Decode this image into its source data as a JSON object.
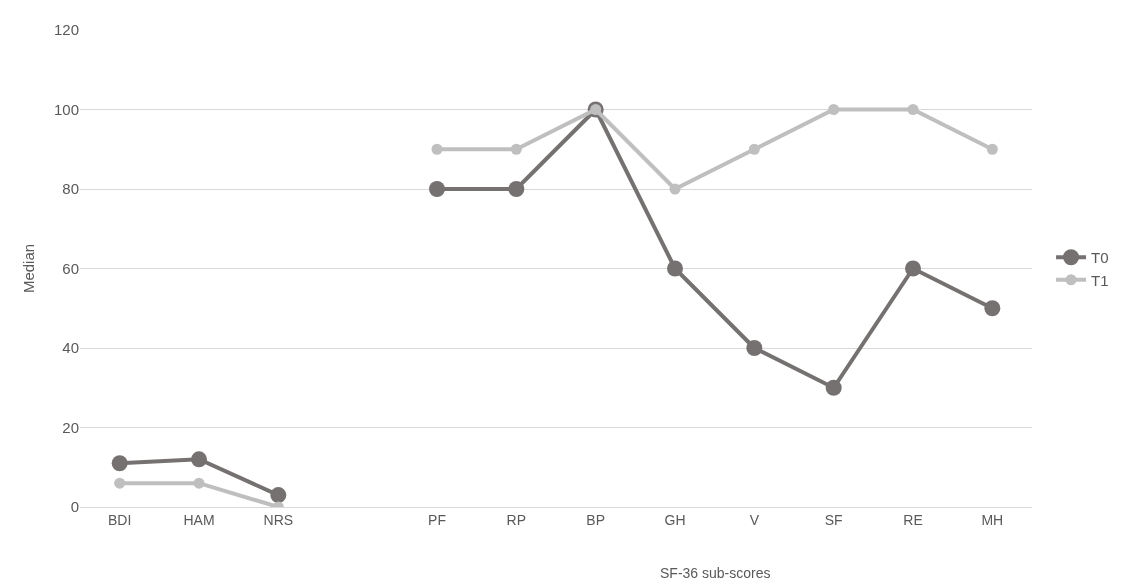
{
  "chart_data": {
    "type": "line",
    "ylabel": "Median",
    "categories": [
      "BDI",
      "HAM",
      "NRS",
      null,
      "PF",
      "RP",
      "BP",
      "GH",
      "V",
      "SF",
      "RE",
      "MH"
    ],
    "series": [
      {
        "name": "T0",
        "color": "#767171",
        "values": [
          11,
          12,
          3,
          null,
          80,
          80,
          100,
          60,
          40,
          30,
          60,
          50
        ]
      },
      {
        "name": "T1",
        "color": "#bfbfbf",
        "values": [
          6,
          6,
          0,
          null,
          90,
          90,
          100,
          80,
          90,
          100,
          100,
          90
        ]
      }
    ],
    "ylim": [
      0,
      120
    ],
    "yticks": [
      0,
      20,
      40,
      60,
      80,
      100,
      120
    ],
    "grid": "y",
    "legend": "right",
    "marker": "circle",
    "line_style": "solid",
    "annotations": [
      "SF-36 sub-scores"
    ]
  }
}
